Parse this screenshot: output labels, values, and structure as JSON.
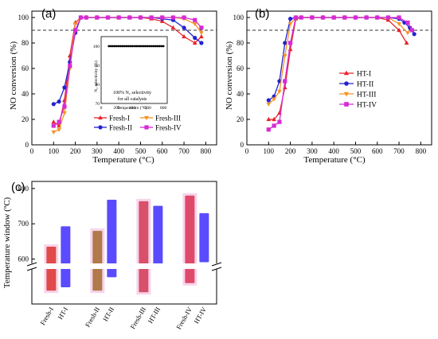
{
  "chart_data": [
    {
      "panel": "(a)",
      "type": "line",
      "xlabel": "Temperature (°C)",
      "ylabel": "NO conversion (%)",
      "xlim": [
        0,
        850
      ],
      "ylim": [
        0,
        105
      ],
      "xticks": [
        0,
        100,
        200,
        300,
        400,
        500,
        600,
        700,
        800
      ],
      "yticks": [
        0,
        20,
        40,
        60,
        80,
        100
      ],
      "reference_line": 90,
      "legend_position": "bottom-center",
      "series": [
        {
          "name": "Fresh-I",
          "color": "#e8232a",
          "marker": "triangle",
          "x": [
            100,
            125,
            150,
            175,
            200,
            225,
            250,
            300,
            350,
            400,
            450,
            500,
            550,
            600,
            650,
            700,
            750,
            780
          ],
          "y": [
            18,
            15,
            35,
            70,
            96,
            100,
            100,
            100,
            100,
            100,
            100,
            100,
            99,
            97,
            92,
            85,
            80,
            85
          ]
        },
        {
          "name": "Fresh-II",
          "color": "#2323d0",
          "marker": "circle",
          "x": [
            100,
            125,
            150,
            175,
            200,
            225,
            250,
            300,
            350,
            400,
            450,
            500,
            550,
            600,
            650,
            700,
            750,
            780
          ],
          "y": [
            32,
            34,
            45,
            65,
            88,
            100,
            100,
            100,
            100,
            100,
            100,
            100,
            100,
            99,
            98,
            92,
            84,
            80
          ]
        },
        {
          "name": "Fresh-III",
          "color": "#f59324",
          "marker": "down-triangle",
          "x": [
            100,
            125,
            150,
            175,
            200,
            225,
            250,
            300,
            350,
            400,
            450,
            500,
            550,
            600,
            650,
            700,
            750,
            780
          ],
          "y": [
            10,
            12,
            25,
            60,
            95,
            100,
            100,
            100,
            100,
            100,
            100,
            100,
            100,
            100,
            100,
            99,
            95,
            88
          ]
        },
        {
          "name": "Fresh-IV",
          "color": "#d62ad6",
          "marker": "square",
          "x": [
            100,
            125,
            150,
            175,
            200,
            225,
            250,
            300,
            350,
            400,
            450,
            500,
            550,
            600,
            650,
            700,
            750,
            780
          ],
          "y": [
            15,
            18,
            30,
            62,
            90,
            100,
            100,
            100,
            100,
            100,
            100,
            100,
            100,
            100,
            100,
            100,
            98,
            92
          ]
        }
      ],
      "inset": {
        "title": "100% N₂ selectivity",
        "subtitle": "for all catalysts",
        "ylabel": "N₂ selectivity (%)",
        "xlabel": "Temperature (°C)",
        "xticks": [
          0,
          200,
          400,
          600,
          800
        ],
        "yticks": [
          70,
          80,
          90,
          100
        ],
        "x": [
          100,
          125,
          150,
          175,
          200,
          225,
          250,
          275,
          300,
          325,
          350,
          375,
          400,
          425,
          450,
          475,
          500,
          525,
          550,
          575,
          600,
          625,
          650,
          675,
          700,
          725,
          750,
          775,
          800
        ],
        "y": [
          100,
          100,
          100,
          100,
          100,
          100,
          100,
          100,
          100,
          100,
          100,
          100,
          100,
          100,
          100,
          100,
          100,
          100,
          100,
          100,
          100,
          100,
          100,
          100,
          100,
          100,
          100,
          100,
          100
        ]
      }
    },
    {
      "panel": "(b)",
      "type": "line",
      "xlabel": "Temperature (°C)",
      "ylabel": "NO conversion (%)",
      "xlim": [
        0,
        850
      ],
      "ylim": [
        0,
        105
      ],
      "xticks": [
        0,
        100,
        200,
        300,
        400,
        500,
        600,
        700,
        800
      ],
      "yticks": [
        0,
        20,
        40,
        60,
        80,
        100
      ],
      "reference_line": 90,
      "legend_position": "center-right",
      "series": [
        {
          "name": "HT-I",
          "color": "#e8232a",
          "marker": "triangle",
          "x": [
            100,
            125,
            150,
            175,
            200,
            225,
            250,
            300,
            350,
            400,
            450,
            500,
            550,
            600,
            650,
            700,
            735
          ],
          "y": [
            20,
            20,
            25,
            45,
            75,
            99,
            100,
            100,
            100,
            100,
            100,
            100,
            100,
            100,
            98,
            90,
            80
          ]
        },
        {
          "name": "HT-II",
          "color": "#2323d0",
          "marker": "circle",
          "x": [
            100,
            125,
            150,
            175,
            200,
            225,
            250,
            300,
            350,
            400,
            450,
            500,
            550,
            600,
            650,
            700,
            725,
            750,
            770
          ],
          "y": [
            35,
            38,
            50,
            80,
            99,
            100,
            100,
            100,
            100,
            100,
            100,
            100,
            100,
            100,
            100,
            99,
            96,
            92,
            87
          ]
        },
        {
          "name": "HT-III",
          "color": "#f59324",
          "marker": "down-triangle",
          "x": [
            100,
            125,
            150,
            175,
            200,
            225,
            250,
            300,
            350,
            400,
            450,
            500,
            550,
            600,
            650,
            700,
            740
          ],
          "y": [
            32,
            36,
            42,
            70,
            95,
            100,
            100,
            100,
            100,
            100,
            100,
            100,
            100,
            100,
            100,
            95,
            88
          ]
        },
        {
          "name": "HT-IV",
          "color": "#d62ad6",
          "marker": "square",
          "x": [
            100,
            125,
            150,
            175,
            200,
            225,
            250,
            300,
            350,
            400,
            450,
            500,
            550,
            600,
            650,
            700,
            740,
            760
          ],
          "y": [
            12,
            15,
            18,
            50,
            80,
            100,
            100,
            100,
            100,
            100,
            100,
            100,
            100,
            100,
            100,
            100,
            96,
            90
          ]
        }
      ]
    },
    {
      "panel": "(c)",
      "type": "bar",
      "ylabel": "Temperature window (ºC)",
      "yticks": [
        600,
        700,
        800
      ],
      "categories": [
        "Fresh-I",
        "HT-I",
        "Fresh-II",
        "HT-II",
        "Fresh-III",
        "HT-III",
        "Fresh-IV",
        "HT-IV"
      ],
      "axis_break": true,
      "low": [
        196,
        200,
        196,
        212,
        194,
        222,
        205,
        230
      ],
      "high": [
        635,
        693,
        680,
        768,
        764,
        751,
        780,
        730
      ],
      "colors": [
        "#e04a4a",
        "#5a4bff",
        "#b07a4a",
        "#5a4bff",
        "#d9506a",
        "#5a4bff",
        "#e04a6a",
        "#5a4bff"
      ]
    }
  ]
}
